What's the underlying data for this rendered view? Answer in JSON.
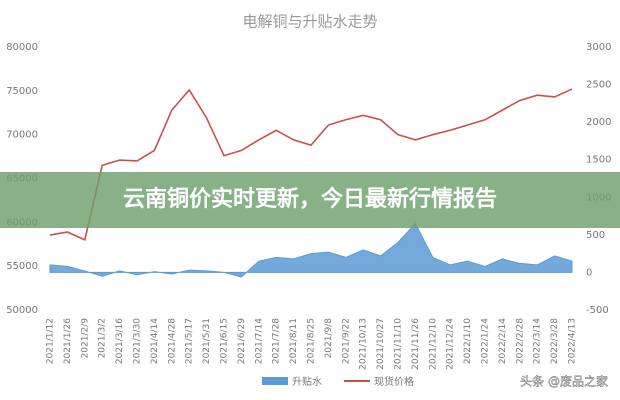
{
  "chart_data": {
    "type": "line-area",
    "title": "电解铜与升贴水走势",
    "categories": [
      "2021/1/12",
      "2021/1/26",
      "2021/2/9",
      "2021/3/2",
      "2021/3/16",
      "2021/3/30",
      "2021/4/14",
      "2021/4/28",
      "2021/5/17",
      "2021/5/31",
      "2021/6/15",
      "2021/6/29",
      "2021/7/14",
      "2021/7/28",
      "2021/8/11",
      "2021/8/25",
      "2021/9/8",
      "2021/9/22",
      "2021/10/13",
      "2021/10/27",
      "2021/11/10",
      "2021/11/26",
      "2021/12/10",
      "2021/12/24",
      "2022/1/10",
      "2022/1/24",
      "2022/2/14",
      "2022/2/28",
      "2022/3/14",
      "2022/3/28",
      "2022/4/13"
    ],
    "series": [
      {
        "name": "升贴水",
        "color": "#5b9bd5",
        "axis": "y2",
        "kind": "area",
        "values": [
          100,
          80,
          20,
          -50,
          20,
          -30,
          10,
          -20,
          30,
          20,
          0,
          -60,
          150,
          200,
          180,
          250,
          270,
          200,
          300,
          220,
          400,
          650,
          200,
          100,
          150,
          80,
          180,
          120,
          100,
          220,
          150
        ]
      },
      {
        "name": "现货价格",
        "color": "#c8504b",
        "kind": "line",
        "values": [
          58550,
          58900,
          58000,
          66500,
          67100,
          67000,
          68200,
          72800,
          75100,
          71900,
          67600,
          68200,
          69400,
          70500,
          69400,
          68800,
          71100,
          71700,
          72200,
          71700,
          70000,
          69400,
          70000,
          70500,
          71100,
          71700,
          72800,
          73900,
          74500,
          74300,
          75200
        ]
      }
    ],
    "ylim": [
      50000,
      80000
    ],
    "yticks": [
      50000,
      55000,
      60000,
      65000,
      70000,
      75000,
      80000
    ],
    "y2lim": [
      -500,
      3000
    ],
    "y2ticks": [
      -500,
      0,
      500,
      1000,
      1500,
      2000,
      2500,
      3000
    ],
    "grid": false
  },
  "overlay": {
    "banner": "云南铜价实时更新，今日最新行情报告",
    "watermark": "头条 @废品之家"
  }
}
